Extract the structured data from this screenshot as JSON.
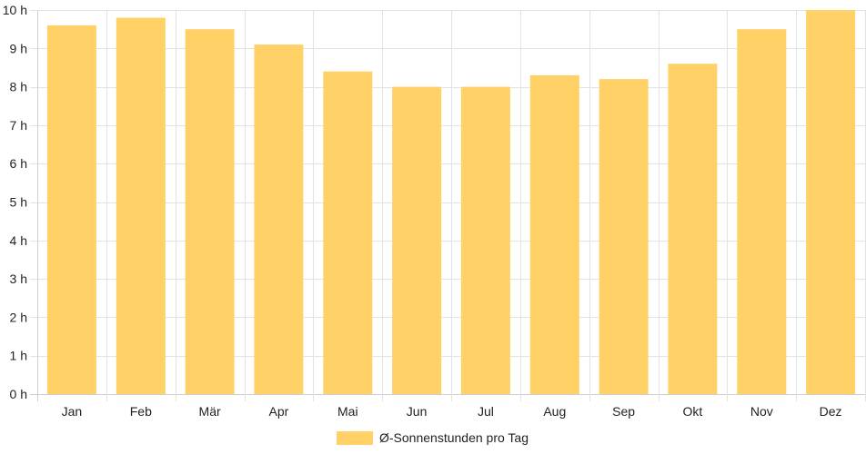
{
  "chart_data": {
    "type": "bar",
    "categories": [
      "Jan",
      "Feb",
      "Mär",
      "Apr",
      "Mai",
      "Jun",
      "Jul",
      "Aug",
      "Sep",
      "Okt",
      "Nov",
      "Dez"
    ],
    "series": [
      {
        "name": "Ø-Sonnenstunden pro Tag",
        "values": [
          9.6,
          9.8,
          9.5,
          9.1,
          8.4,
          8.0,
          8.0,
          8.3,
          8.2,
          8.6,
          9.5,
          10.0
        ]
      }
    ],
    "y_ticks": [
      "0 h",
      "1 h",
      "2 h",
      "3 h",
      "4 h",
      "5 h",
      "6 h",
      "7 h",
      "8 h",
      "9 h",
      "10 h"
    ],
    "ylim": [
      0,
      10
    ],
    "grid": true,
    "legend_position": "bottom",
    "bar_color": "#ffd166"
  }
}
